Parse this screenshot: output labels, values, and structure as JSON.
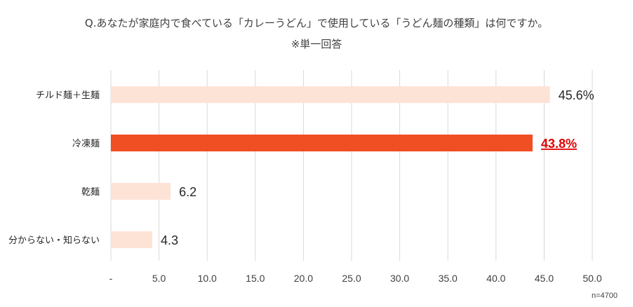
{
  "chart_data": {
    "type": "bar",
    "orientation": "horizontal",
    "title": "Q.あなたが家庭内で食べている「カレーうどん」で使用している「うどん麺の種類」は何ですか。",
    "subtitle": "※単一回答",
    "categories": [
      "チルド麺＋生麺",
      "冷凍麺",
      "乾麺",
      "分からない・知らない"
    ],
    "values": [
      45.6,
      43.8,
      6.2,
      4.3
    ],
    "data_labels": [
      "45.6%",
      "43.8%",
      "6.2",
      "4.3"
    ],
    "highlight_index": 1,
    "xlim": [
      0,
      50
    ],
    "x_ticks": [
      0,
      5,
      10,
      15,
      20,
      25,
      30,
      35,
      40,
      45,
      50
    ],
    "x_tick_labels": [
      "-",
      "5.0",
      "10.0",
      "15.0",
      "20.0",
      "25.0",
      "30.0",
      "35.0",
      "40.0",
      "45.0",
      "50.0"
    ],
    "grid": true,
    "note": "n=4700",
    "colors": {
      "bar": "#fde3d6",
      "highlight": "#f04e23",
      "grid": "#d9d9d9",
      "highlight_label": "#e00000"
    }
  }
}
